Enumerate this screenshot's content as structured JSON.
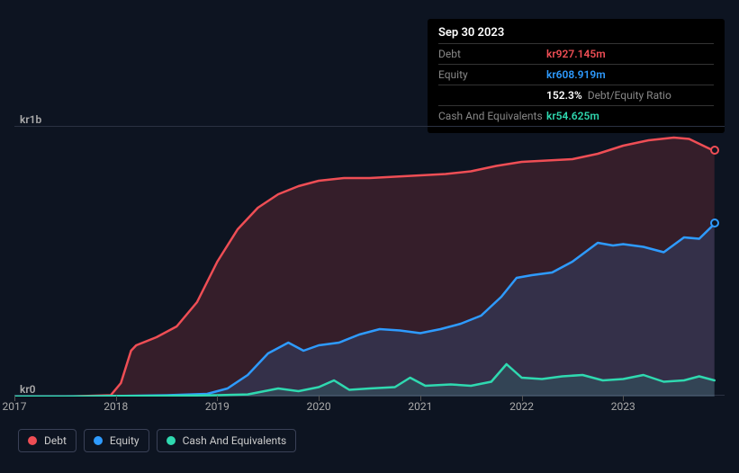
{
  "tooltip": {
    "date": "Sep 30 2023",
    "rows": [
      {
        "label": "Debt",
        "value": "kr927.145m",
        "color": "#ef4e55"
      },
      {
        "label": "Equity",
        "value": "kr608.919m",
        "color": "#2e9bff"
      },
      {
        "label": "",
        "value": "152.3%",
        "color": "#ffffff",
        "extra": "Debt/Equity Ratio"
      },
      {
        "label": "Cash And Equivalents",
        "value": "kr54.625m",
        "color": "#2fd9b0"
      }
    ]
  },
  "chart": {
    "type": "area",
    "background_color": "#0d1421",
    "grid_color": "#2a3142",
    "xlim": [
      2017,
      2024
    ],
    "ylim": [
      0,
      1000
    ],
    "y_ticks": [
      {
        "value": 0,
        "label": "kr0"
      },
      {
        "value": 1000,
        "label": "kr1b"
      }
    ],
    "x_ticks": [
      2017,
      2018,
      2019,
      2020,
      2021,
      2022,
      2023
    ],
    "series": [
      {
        "name": "Debt",
        "color": "#ef4e55",
        "fill_opacity": 0.18,
        "line_width": 2.5,
        "data": [
          [
            2017.0,
            0
          ],
          [
            2017.5,
            0
          ],
          [
            2017.95,
            5
          ],
          [
            2018.05,
            50
          ],
          [
            2018.15,
            170
          ],
          [
            2018.2,
            190
          ],
          [
            2018.4,
            220
          ],
          [
            2018.6,
            260
          ],
          [
            2018.8,
            350
          ],
          [
            2019.0,
            500
          ],
          [
            2019.2,
            620
          ],
          [
            2019.4,
            700
          ],
          [
            2019.6,
            750
          ],
          [
            2019.8,
            780
          ],
          [
            2020.0,
            800
          ],
          [
            2020.25,
            810
          ],
          [
            2020.5,
            810
          ],
          [
            2020.75,
            815
          ],
          [
            2021.0,
            820
          ],
          [
            2021.25,
            825
          ],
          [
            2021.5,
            835
          ],
          [
            2021.75,
            855
          ],
          [
            2022.0,
            870
          ],
          [
            2022.25,
            875
          ],
          [
            2022.5,
            880
          ],
          [
            2022.75,
            900
          ],
          [
            2023.0,
            930
          ],
          [
            2023.25,
            950
          ],
          [
            2023.5,
            960
          ],
          [
            2023.65,
            955
          ],
          [
            2023.9,
            910
          ]
        ]
      },
      {
        "name": "Equity",
        "color": "#2e9bff",
        "fill_opacity": 0.15,
        "line_width": 2.5,
        "data": [
          [
            2017.0,
            0
          ],
          [
            2017.5,
            0
          ],
          [
            2018.0,
            2
          ],
          [
            2018.5,
            5
          ],
          [
            2018.9,
            10
          ],
          [
            2019.1,
            30
          ],
          [
            2019.3,
            80
          ],
          [
            2019.5,
            160
          ],
          [
            2019.7,
            200
          ],
          [
            2019.85,
            170
          ],
          [
            2020.0,
            190
          ],
          [
            2020.2,
            200
          ],
          [
            2020.4,
            230
          ],
          [
            2020.6,
            250
          ],
          [
            2020.8,
            245
          ],
          [
            2021.0,
            235
          ],
          [
            2021.2,
            250
          ],
          [
            2021.4,
            270
          ],
          [
            2021.6,
            300
          ],
          [
            2021.8,
            370
          ],
          [
            2021.95,
            440
          ],
          [
            2022.1,
            450
          ],
          [
            2022.3,
            460
          ],
          [
            2022.5,
            500
          ],
          [
            2022.75,
            570
          ],
          [
            2022.9,
            560
          ],
          [
            2023.0,
            565
          ],
          [
            2023.2,
            555
          ],
          [
            2023.4,
            535
          ],
          [
            2023.6,
            590
          ],
          [
            2023.75,
            585
          ],
          [
            2023.9,
            640
          ]
        ]
      },
      {
        "name": "Cash And Equivalents",
        "color": "#2fd9b0",
        "fill_opacity": 0.12,
        "line_width": 2.5,
        "data": [
          [
            2017.0,
            0
          ],
          [
            2017.5,
            0
          ],
          [
            2018.0,
            2
          ],
          [
            2018.5,
            3
          ],
          [
            2019.0,
            5
          ],
          [
            2019.3,
            8
          ],
          [
            2019.6,
            30
          ],
          [
            2019.8,
            20
          ],
          [
            2020.0,
            35
          ],
          [
            2020.15,
            60
          ],
          [
            2020.3,
            25
          ],
          [
            2020.5,
            30
          ],
          [
            2020.75,
            35
          ],
          [
            2020.9,
            70
          ],
          [
            2021.05,
            40
          ],
          [
            2021.3,
            45
          ],
          [
            2021.5,
            40
          ],
          [
            2021.7,
            55
          ],
          [
            2021.85,
            120
          ],
          [
            2022.0,
            70
          ],
          [
            2022.2,
            65
          ],
          [
            2022.4,
            75
          ],
          [
            2022.6,
            80
          ],
          [
            2022.8,
            60
          ],
          [
            2023.0,
            65
          ],
          [
            2023.2,
            80
          ],
          [
            2023.4,
            55
          ],
          [
            2023.6,
            60
          ],
          [
            2023.75,
            75
          ],
          [
            2023.9,
            60
          ]
        ]
      }
    ],
    "legend": [
      {
        "label": "Debt",
        "color": "#ef4e55"
      },
      {
        "label": "Equity",
        "color": "#2e9bff"
      },
      {
        "label": "Cash And Equivalents",
        "color": "#2fd9b0"
      }
    ],
    "label_fontsize": 12,
    "label_color": "#aaaaaa"
  }
}
